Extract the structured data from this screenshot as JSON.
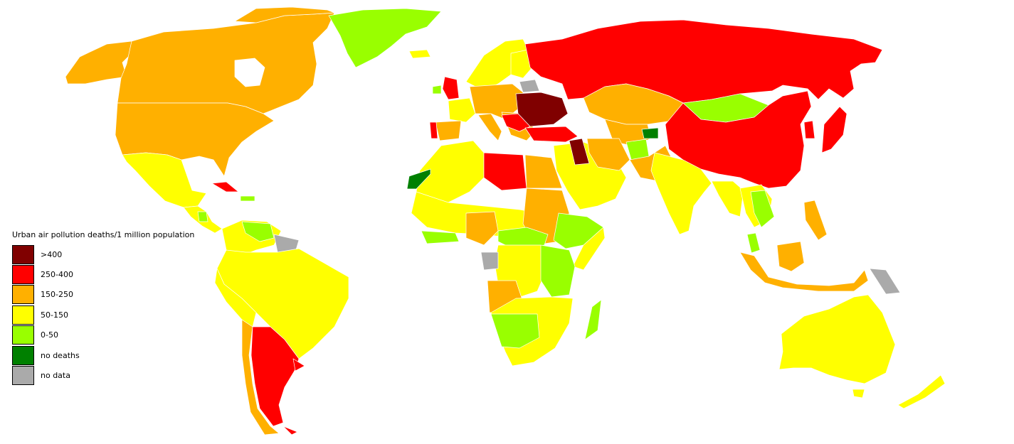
{
  "legend": {
    "title": "Urban air pollution deaths/1 million population",
    "items": [
      {
        "id": "gt400",
        "label": ">400",
        "color": "#800000"
      },
      {
        "id": "250-400",
        "label": "250-400",
        "color": "#ff0000"
      },
      {
        "id": "150-250",
        "label": "150-250",
        "color": "#ffb000"
      },
      {
        "id": "50-150",
        "label": "50-150",
        "color": "#ffff00"
      },
      {
        "id": "0-50",
        "label": "0-50",
        "color": "#99ff00"
      },
      {
        "id": "no-deaths",
        "label": "no deaths",
        "color": "#008000"
      },
      {
        "id": "no-data",
        "label": "no data",
        "color": "#aaaaaa"
      }
    ]
  }
}
